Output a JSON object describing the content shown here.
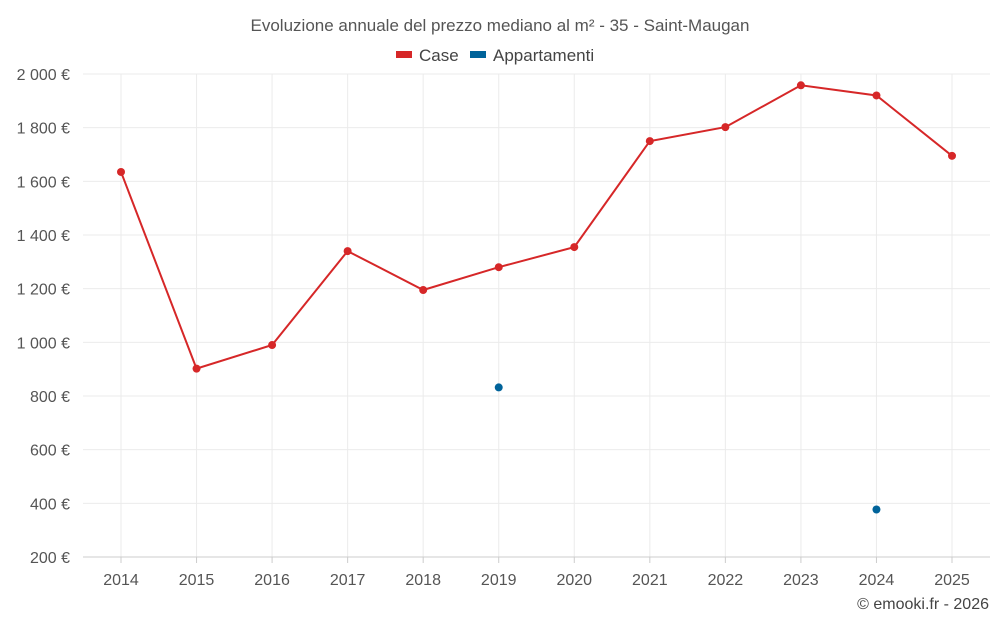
{
  "chart_data": {
    "type": "line",
    "title": "Evoluzione annuale del prezzo mediano al m² - 35 - Saint-Maugan",
    "categories": [
      "2014",
      "2015",
      "2016",
      "2017",
      "2018",
      "2019",
      "2020",
      "2021",
      "2022",
      "2023",
      "2024",
      "2025"
    ],
    "yticks": [
      "200 €",
      "400 €",
      "600 €",
      "800 €",
      "1 000 €",
      "1 200 €",
      "1 400 €",
      "1 600 €",
      "1 800 €",
      "2 000 €"
    ],
    "ylim": [
      200,
      2000
    ],
    "series": [
      {
        "name": "Case",
        "color": "#d62728",
        "values": [
          1635,
          902,
          990,
          1340,
          1195,
          1280,
          1355,
          1750,
          1802,
          1958,
          1920,
          1695
        ]
      },
      {
        "name": "Appartamenti",
        "color": "#00639a",
        "values": [
          null,
          null,
          null,
          null,
          null,
          832,
          null,
          null,
          null,
          null,
          377,
          null
        ]
      }
    ],
    "credit": "© emooki.fr - 2026"
  }
}
